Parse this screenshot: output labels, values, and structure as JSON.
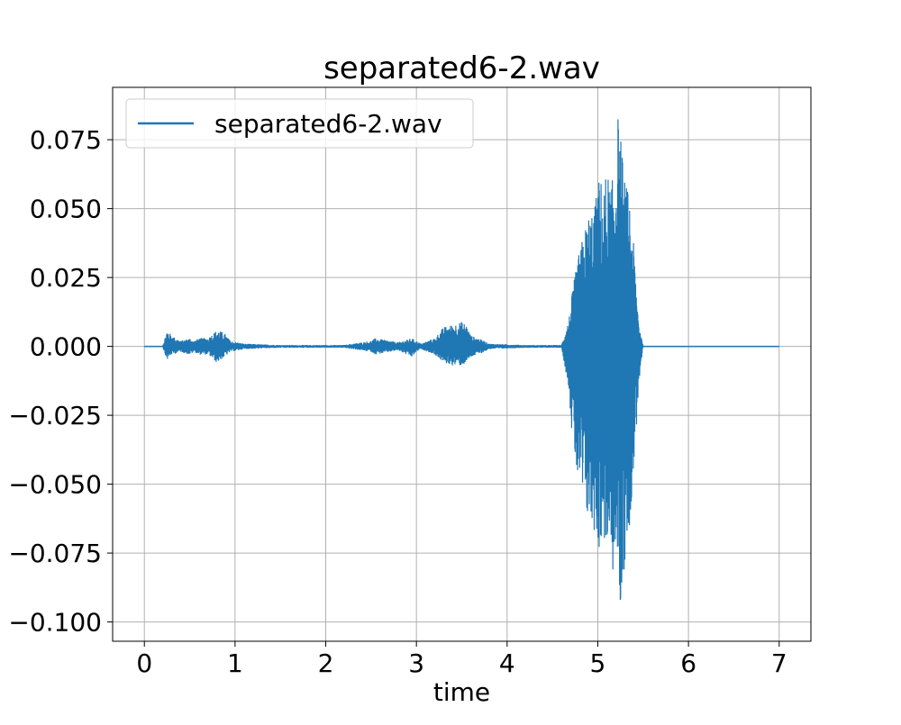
{
  "chart_data": {
    "type": "line",
    "title": "separated6-2.wav",
    "xlabel": "time",
    "ylabel": "",
    "xlim": [
      -0.35,
      7.35
    ],
    "ylim": [
      -0.107,
      0.094
    ],
    "xticks": [
      0,
      1,
      2,
      3,
      4,
      5,
      6,
      7
    ],
    "xtick_labels": [
      "0",
      "1",
      "2",
      "3",
      "4",
      "5",
      "6",
      "7"
    ],
    "yticks": [
      0.075,
      0.05,
      0.025,
      0.0,
      -0.025,
      -0.05,
      -0.075,
      -0.1
    ],
    "ytick_labels": [
      "0.075",
      "0.050",
      "0.025",
      "0.000",
      "−0.025",
      "−0.050",
      "−0.075",
      "−0.100"
    ],
    "grid": true,
    "legend": {
      "position": "top-left",
      "entries": [
        "separated6-2.wav"
      ]
    },
    "series": [
      {
        "name": "separated6-2.wav",
        "color": "#1f77b4",
        "envelope": {
          "x": [
            0.0,
            0.2,
            0.25,
            0.3,
            0.4,
            0.5,
            0.55,
            0.6,
            0.7,
            0.8,
            0.88,
            0.95,
            1.1,
            1.5,
            2.0,
            2.2,
            2.5,
            2.55,
            2.8,
            2.95,
            3.0,
            3.05,
            3.2,
            3.3,
            3.4,
            3.5,
            3.55,
            3.6,
            3.75,
            3.8,
            4.2,
            4.6,
            4.68,
            4.72,
            4.78,
            4.85,
            4.9,
            4.97,
            5.02,
            5.06,
            5.1,
            5.14,
            5.18,
            5.22,
            5.25,
            5.3,
            5.35,
            5.4,
            5.45,
            5.5,
            6.0,
            7.0
          ],
          "upper": [
            0.0,
            0.0,
            0.006,
            0.004,
            0.002,
            0.003,
            0.002,
            0.003,
            0.003,
            0.006,
            0.005,
            0.002,
            0.001,
            0.0005,
            0.0005,
            0.0005,
            0.002,
            0.003,
            0.0015,
            0.003,
            0.002,
            0.001,
            0.003,
            0.007,
            0.008,
            0.009,
            0.008,
            0.004,
            0.002,
            0.001,
            0.0005,
            0.0005,
            0.01,
            0.02,
            0.032,
            0.042,
            0.048,
            0.052,
            0.063,
            0.057,
            0.065,
            0.058,
            0.063,
            0.085,
            0.077,
            0.06,
            0.055,
            0.035,
            0.01,
            0.0,
            0.0,
            0.0
          ],
          "lower": [
            0.0,
            0.0,
            -0.005,
            -0.003,
            -0.002,
            -0.003,
            -0.002,
            -0.003,
            -0.003,
            -0.006,
            -0.004,
            -0.002,
            -0.001,
            -0.0005,
            -0.0005,
            -0.0005,
            -0.002,
            -0.003,
            -0.0015,
            -0.004,
            -0.002,
            -0.001,
            -0.003,
            -0.006,
            -0.007,
            -0.007,
            -0.006,
            -0.004,
            -0.002,
            -0.001,
            -0.0005,
            -0.0005,
            -0.015,
            -0.035,
            -0.05,
            -0.06,
            -0.065,
            -0.068,
            -0.075,
            -0.07,
            -0.074,
            -0.08,
            -0.085,
            -0.078,
            -0.098,
            -0.08,
            -0.065,
            -0.045,
            -0.015,
            0.0,
            0.0,
            0.0
          ]
        }
      }
    ]
  }
}
